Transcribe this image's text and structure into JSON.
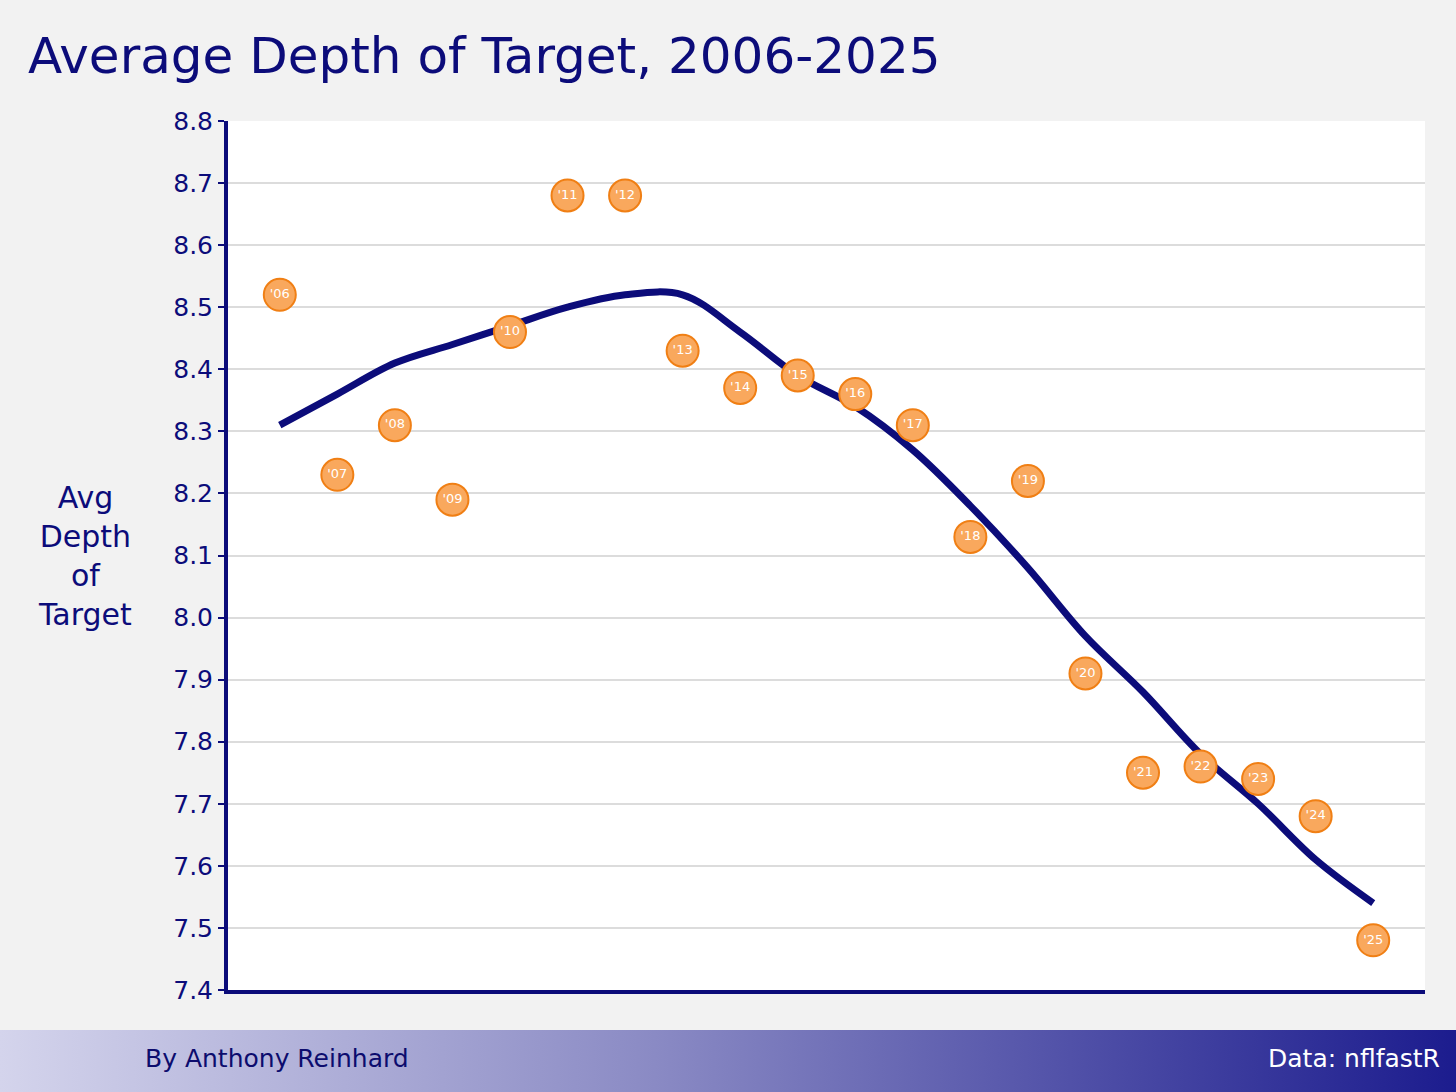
{
  "chart_data": {
    "type": "scatter",
    "title": "Average Depth of Target, 2006-2025",
    "y_label": "Avg Depth of Target",
    "x": [
      2006,
      2007,
      2008,
      2009,
      2010,
      2011,
      2012,
      2013,
      2014,
      2015,
      2016,
      2017,
      2018,
      2019,
      2020,
      2021,
      2022,
      2023,
      2024,
      2025
    ],
    "labels": [
      "'06",
      "'07",
      "'08",
      "'09",
      "'10",
      "'11",
      "'12",
      "'13",
      "'14",
      "'15",
      "'16",
      "'17",
      "'18",
      "'19",
      "'20",
      "'21",
      "'22",
      "'23",
      "'24",
      "'25"
    ],
    "values": [
      8.52,
      8.23,
      8.31,
      8.19,
      8.46,
      8.68,
      8.68,
      8.43,
      8.37,
      8.39,
      8.36,
      8.31,
      8.13,
      8.22,
      7.91,
      7.75,
      7.76,
      7.74,
      7.68,
      7.48
    ],
    "trend": [
      8.31,
      8.36,
      8.41,
      8.44,
      8.47,
      8.5,
      8.52,
      8.52,
      8.46,
      8.39,
      8.34,
      8.27,
      8.18,
      8.08,
      7.97,
      7.88,
      7.78,
      7.7,
      7.61,
      7.54
    ],
    "color": "#f9a85d",
    "trend_color": "#0c0c7a",
    "marker": "circle",
    "xlim": [
      2005.1,
      2025.9
    ],
    "ylim": [
      7.4,
      8.8
    ],
    "yticks": [
      7.4,
      7.5,
      7.6,
      7.7,
      7.8,
      7.9,
      {
        "value": 8,
        "label": "8.0"
      },
      8.1,
      8.2,
      8.3,
      8.4,
      8.5,
      8.6,
      8.7,
      8.8
    ],
    "tick_labels": "y",
    "grid": true,
    "byline": "By Anthony Reinhard",
    "source": "Data: nflfastR"
  }
}
